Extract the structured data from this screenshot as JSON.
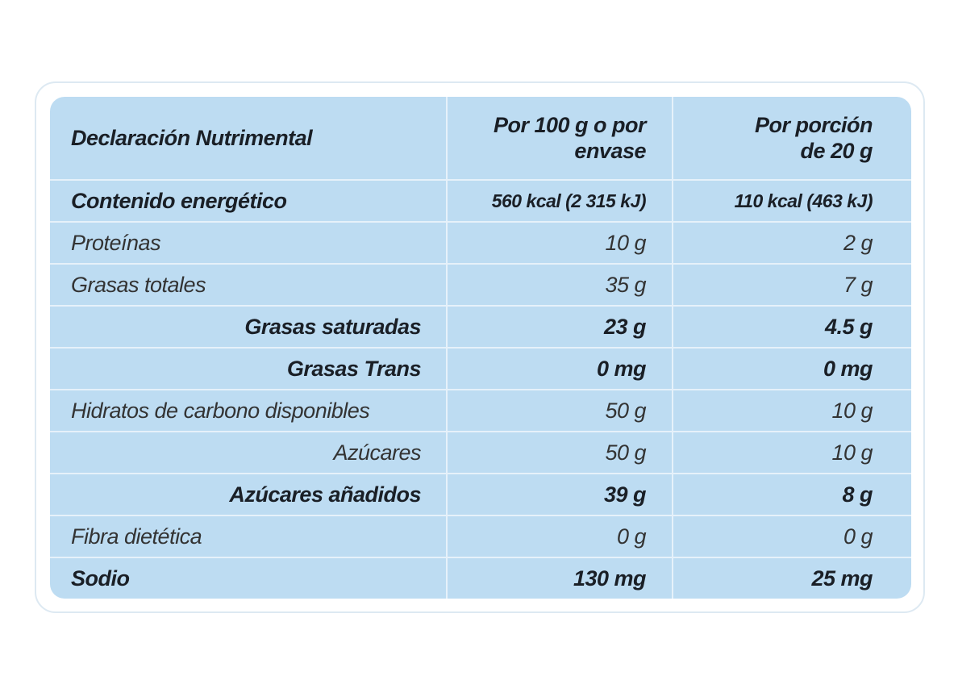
{
  "header": {
    "col1": "Declaración Nutrimental",
    "col2_line1": "Por 100 g o por",
    "col2_line2": "envase",
    "col3_line1": "Por porción",
    "col3_line2": "de 20 g"
  },
  "rows": [
    {
      "label": "Contenido energético",
      "per100": "560 kcal (2 315 kJ)",
      "perPortion": "110 kcal (463 kJ)",
      "bold": true,
      "indent": false
    },
    {
      "label": "Proteínas",
      "per100": "10 g",
      "perPortion": "2 g",
      "bold": false,
      "indent": false
    },
    {
      "label": "Grasas totales",
      "per100": "35 g",
      "perPortion": "7 g",
      "bold": false,
      "indent": false
    },
    {
      "label": "Grasas saturadas",
      "per100": "23 g",
      "perPortion": "4.5 g",
      "bold": true,
      "indent": true
    },
    {
      "label": "Grasas Trans",
      "per100": "0 mg",
      "perPortion": "0 mg",
      "bold": true,
      "indent": true
    },
    {
      "label": "Hidratos de carbono disponibles",
      "per100": "50 g",
      "perPortion": "10 g",
      "bold": false,
      "indent": false
    },
    {
      "label": "Azúcares",
      "per100": "50 g",
      "perPortion": "10 g",
      "bold": false,
      "indent": true
    },
    {
      "label": "Azúcares añadidos",
      "per100": "39 g",
      "perPortion": "8 g",
      "bold": true,
      "indent": true
    },
    {
      "label": "Fibra dietética",
      "per100": "0 g",
      "perPortion": "0 g",
      "bold": false,
      "indent": false
    },
    {
      "label": "Sodio",
      "per100": "130 mg",
      "perPortion": "25 mg",
      "bold": true,
      "indent": false
    }
  ],
  "colors": {
    "table_bg": "#bddcf2",
    "grid_lines": "#e6f1fa",
    "frame": "#dde9f2"
  }
}
